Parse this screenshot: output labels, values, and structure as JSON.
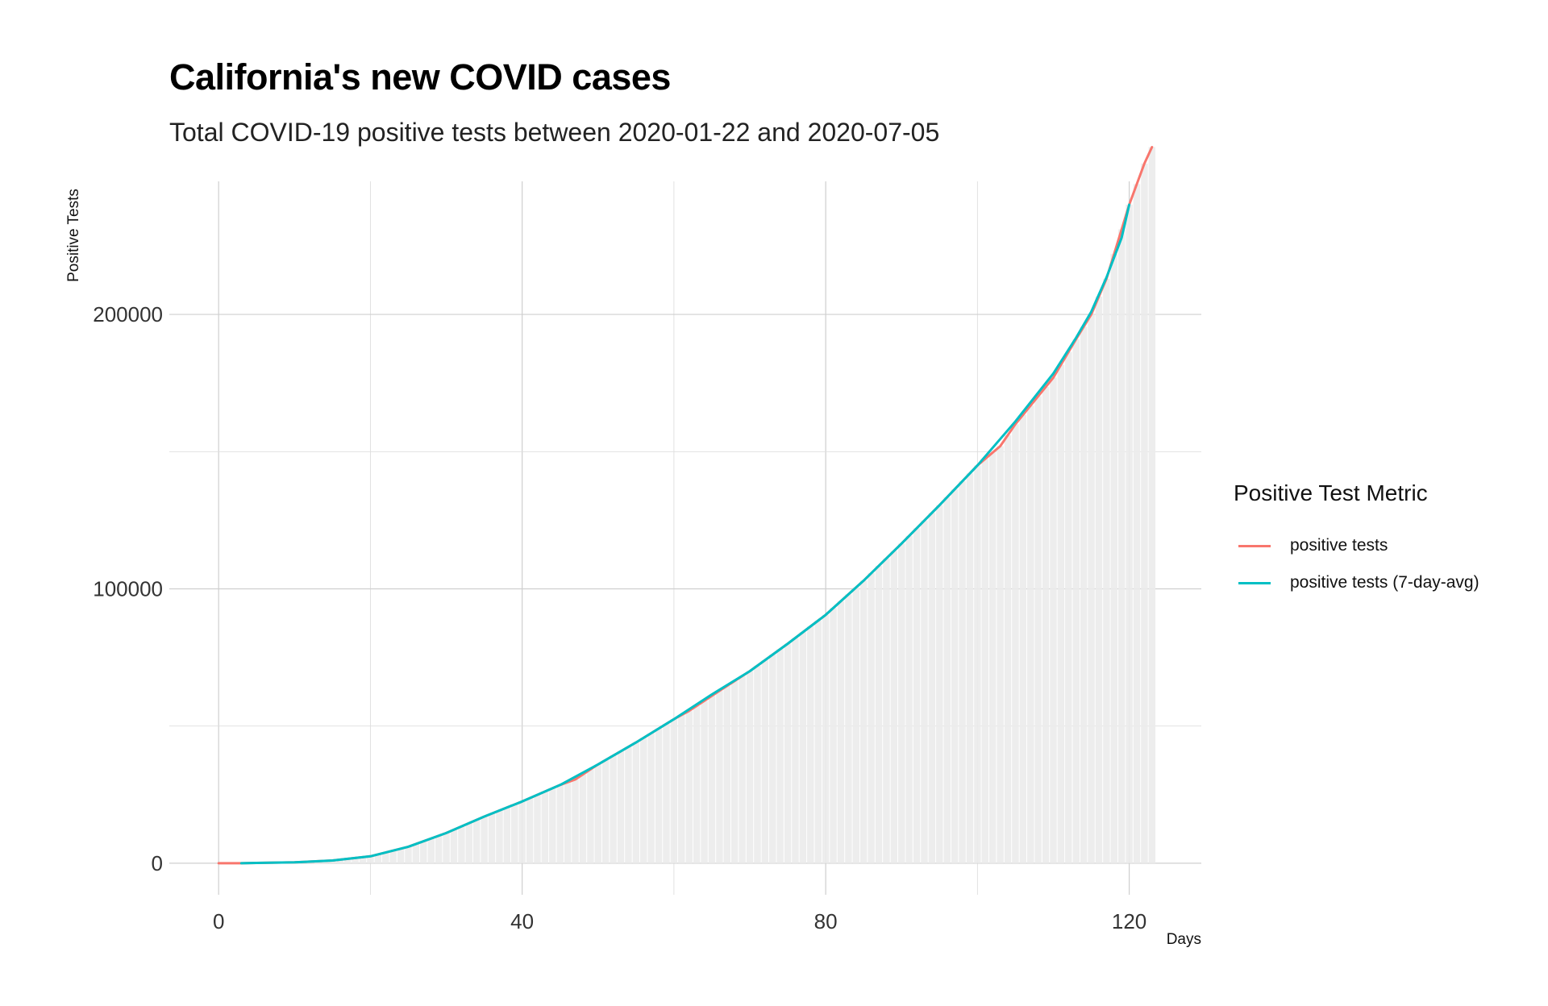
{
  "chart_data": {
    "type": "line",
    "title": "California's new COVID cases",
    "subtitle": "Total COVID-19 positive tests between 2020-01-22 and 2020-07-05",
    "xlabel": "Days",
    "ylabel": "Positive Tests",
    "xlim": [
      -6.5,
      129.5
    ],
    "ylim": [
      -11500,
      248500
    ],
    "x_ticks": [
      0,
      40,
      80,
      120
    ],
    "y_ticks": [
      0,
      100000,
      200000
    ],
    "grid": true,
    "legend": {
      "title": "Positive Test Metric",
      "position": "right"
    },
    "background_bars": {
      "description": "light gray bars for each day showing cumulative positive tests",
      "color": "#EBEBEB"
    },
    "series": [
      {
        "name": "positive tests",
        "color": "#F8766D",
        "points": [
          [
            0,
            0
          ],
          [
            3,
            0
          ],
          [
            5,
            100
          ],
          [
            10,
            300
          ],
          [
            15,
            1000
          ],
          [
            20,
            2500
          ],
          [
            25,
            6000
          ],
          [
            30,
            11000
          ],
          [
            35,
            17000
          ],
          [
            40,
            22500
          ],
          [
            45,
            28500
          ],
          [
            47,
            30500
          ],
          [
            50,
            36000
          ],
          [
            55,
            44000
          ],
          [
            60,
            52500
          ],
          [
            62,
            55500
          ],
          [
            65,
            61000
          ],
          [
            70,
            70000
          ],
          [
            75,
            80000
          ],
          [
            80,
            90500
          ],
          [
            85,
            103000
          ],
          [
            90,
            116500
          ],
          [
            95,
            130500
          ],
          [
            100,
            145000
          ],
          [
            103,
            152000
          ],
          [
            105,
            160000
          ],
          [
            110,
            177000
          ],
          [
            113,
            191000
          ],
          [
            115,
            200000
          ],
          [
            117,
            213000
          ],
          [
            120,
            240000
          ],
          [
            122,
            255000
          ],
          [
            123,
            261000
          ]
        ]
      },
      {
        "name": "positive tests (7-day-avg)",
        "color": "#00BFC4",
        "points": [
          [
            3,
            0
          ],
          [
            5,
            100
          ],
          [
            10,
            300
          ],
          [
            15,
            1000
          ],
          [
            20,
            2500
          ],
          [
            25,
            6000
          ],
          [
            30,
            11000
          ],
          [
            35,
            17000
          ],
          [
            40,
            22500
          ],
          [
            45,
            28500
          ],
          [
            50,
            36000
          ],
          [
            55,
            44000
          ],
          [
            60,
            52500
          ],
          [
            65,
            61500
          ],
          [
            70,
            70000
          ],
          [
            75,
            80000
          ],
          [
            80,
            90500
          ],
          [
            85,
            103000
          ],
          [
            90,
            116500
          ],
          [
            95,
            130500
          ],
          [
            100,
            145000
          ],
          [
            105,
            161000
          ],
          [
            110,
            178500
          ],
          [
            113,
            191500
          ],
          [
            115,
            201000
          ],
          [
            117,
            213500
          ],
          [
            119,
            228000
          ],
          [
            120,
            240000
          ]
        ]
      }
    ]
  }
}
